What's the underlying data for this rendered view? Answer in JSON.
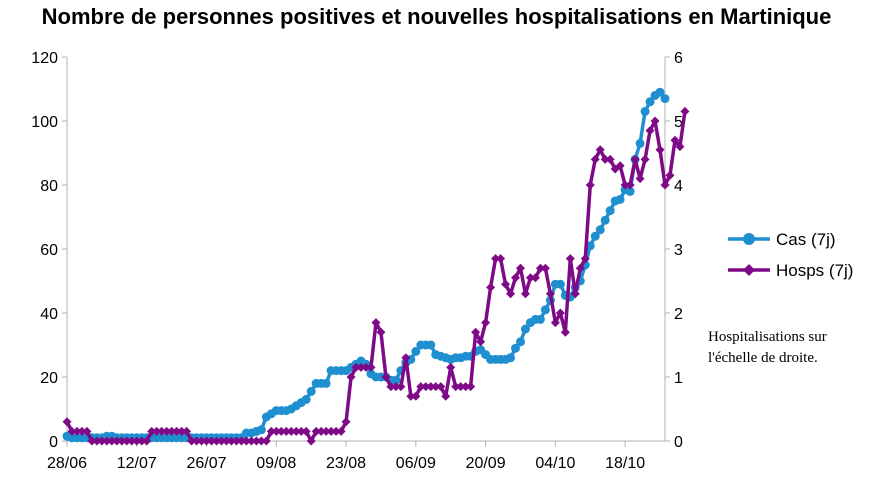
{
  "title": "Nombre de personnes positives et nouvelles hospitalisations en Martinique",
  "note": "Hospitalisations sur l'échelle de droite.",
  "chart_data": {
    "type": "line",
    "title": "Nombre de personnes positives et nouvelles hospitalisations en Martinique",
    "xlabel": "",
    "ylabel": "",
    "ylim": [
      0,
      120
    ],
    "y2lim": [
      0,
      6
    ],
    "y_ticks": [
      "0",
      "20",
      "40",
      "60",
      "80",
      "100",
      "120"
    ],
    "y2_ticks": [
      "0",
      "1",
      "2",
      "3",
      "4",
      "5",
      "6"
    ],
    "x_tick_labels": [
      "28/06",
      "12/07",
      "26/07",
      "09/08",
      "23/08",
      "06/09",
      "20/09",
      "04/10",
      "18/10"
    ],
    "x_tick_day_index": [
      0,
      14,
      28,
      42,
      56,
      70,
      84,
      98,
      112
    ],
    "grid": false,
    "legend_position": "right",
    "colors": {
      "cas": "#1f8fd0",
      "hosps": "#7e0a87"
    },
    "series": [
      {
        "name": "Cas (7j)",
        "axis": "left",
        "marker": "circle",
        "values": [
          1.5,
          1,
          1,
          1,
          1,
          1,
          1,
          1,
          1.5,
          1.5,
          1,
          1,
          1,
          1,
          1,
          1,
          1,
          1,
          1,
          1,
          1,
          1,
          1,
          1,
          1,
          1,
          1,
          1,
          1,
          1,
          1,
          1,
          1,
          1,
          1,
          1,
          2.5,
          2.5,
          3,
          3.5,
          7.5,
          8.5,
          9.5,
          9.5,
          9.5,
          10,
          11,
          12,
          13,
          15.5,
          18,
          18,
          18,
          22,
          22,
          22,
          22,
          23,
          24,
          25,
          24,
          21,
          20,
          20,
          20,
          19,
          19,
          22,
          24.5,
          25.5,
          28,
          30,
          30,
          30,
          27,
          26.5,
          26,
          25.5,
          26,
          26,
          26.5,
          26.5,
          28,
          28.5,
          27,
          25.5,
          25.5,
          25.5,
          25.5,
          26,
          29,
          31,
          35,
          37,
          38,
          38,
          41,
          44,
          49,
          49,
          45.5,
          45,
          48,
          50,
          55,
          61,
          64,
          66,
          69,
          72,
          75,
          75.5,
          78.5,
          78,
          88,
          93,
          103,
          106,
          108,
          109,
          107
        ]
      },
      {
        "name": "Hosps (7j)",
        "axis": "right",
        "marker": "diamond",
        "values": [
          0.3,
          0.15,
          0.15,
          0.15,
          0.15,
          0,
          0,
          0,
          0,
          0,
          0,
          0,
          0,
          0,
          0,
          0,
          0,
          0.15,
          0.15,
          0.15,
          0.15,
          0.15,
          0.15,
          0.15,
          0.15,
          0,
          0,
          0,
          0,
          0,
          0,
          0,
          0,
          0,
          0,
          0,
          0,
          0,
          0,
          0,
          0,
          0.15,
          0.15,
          0.15,
          0.15,
          0.15,
          0.15,
          0.15,
          0.15,
          0,
          0.15,
          0.15,
          0.15,
          0.15,
          0.15,
          0.15,
          0.3,
          1,
          1.15,
          1.15,
          1.15,
          1.15,
          1.85,
          1.7,
          1,
          0.85,
          0.85,
          0.85,
          1.3,
          0.7,
          0.7,
          0.85,
          0.85,
          0.85,
          0.85,
          0.85,
          0.7,
          1.15,
          0.85,
          0.85,
          0.85,
          0.85,
          1.7,
          1.55,
          1.85,
          2.4,
          2.85,
          2.85,
          2.45,
          2.3,
          2.55,
          2.7,
          2.3,
          2.55,
          2.55,
          2.7,
          2.7,
          2.3,
          1.85,
          2,
          1.7,
          2.85,
          2.3,
          2.7,
          2.85,
          4,
          4.4,
          4.55,
          4.4,
          4.4,
          4.25,
          4.3,
          4,
          4,
          4.4,
          4.1,
          4.4,
          4.85,
          5,
          4.55,
          4,
          4.15,
          4.7,
          4.6,
          5.15
        ]
      }
    ]
  }
}
